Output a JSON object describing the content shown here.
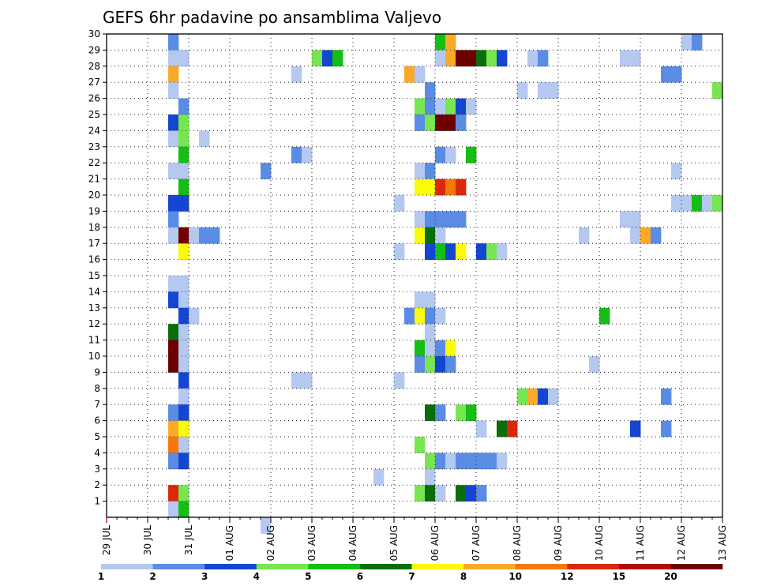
{
  "chart_data": {
    "type": "heatmap",
    "title": "GEFS 6hr padavine po ansamblima Valjevo",
    "xlabel": "",
    "ylabel": "",
    "x_tick_labels": [
      "29 JUL",
      "30 JUL",
      "31 JUL",
      "01 AUG",
      "02 AUG",
      "03 AUG",
      "04 AUG",
      "05 AUG",
      "06 AUG",
      "07 AUG",
      "08 AUG",
      "09 AUG",
      "10 AUG",
      "11 AUG",
      "12 AUG",
      "13 AUG"
    ],
    "x_unit": "6-hour step from 29 JUL 00 UTC",
    "xlim": [
      0,
      60
    ],
    "y_tick_labels": [
      "1",
      "2",
      "3",
      "4",
      "5",
      "6",
      "7",
      "8",
      "9",
      "10",
      "11",
      "12",
      "13",
      "14",
      "15",
      "16",
      "17",
      "18",
      "19",
      "20",
      "21",
      "22",
      "23",
      "24",
      "25",
      "26",
      "27",
      "28",
      "29",
      "30"
    ],
    "ylim": [
      0,
      30
    ],
    "grid": true,
    "colorbar": {
      "labels": [
        "1",
        "2",
        "3",
        "4",
        "5",
        "6",
        "7",
        "8",
        "10",
        "12",
        "15",
        "20"
      ],
      "colors": [
        "#b4c8f0",
        "#5a8ce6",
        "#1446d2",
        "#78e650",
        "#14be14",
        "#0a6e0a",
        "#fafa0a",
        "#faaa28",
        "#f5780a",
        "#dc280a",
        "#b40a0a",
        "#6e0000"
      ]
    },
    "cells_format": "[member, x_step, color_index]",
    "cells": [
      [
        30,
        6,
        1
      ],
      [
        30,
        32,
        4
      ],
      [
        30,
        33,
        7
      ],
      [
        30,
        56,
        0
      ],
      [
        30,
        57,
        1
      ],
      [
        29,
        6,
        0
      ],
      [
        29,
        7,
        0
      ],
      [
        29,
        20,
        3
      ],
      [
        29,
        21,
        2
      ],
      [
        29,
        22,
        4
      ],
      [
        29,
        32,
        0
      ],
      [
        29,
        33,
        7
      ],
      [
        29,
        34,
        11
      ],
      [
        29,
        35,
        11
      ],
      [
        29,
        36,
        5
      ],
      [
        29,
        37,
        3
      ],
      [
        29,
        38,
        2
      ],
      [
        29,
        41,
        0
      ],
      [
        29,
        42,
        1
      ],
      [
        29,
        50,
        0
      ],
      [
        29,
        51,
        0
      ],
      [
        28,
        6,
        7
      ],
      [
        28,
        18,
        0
      ],
      [
        28,
        29,
        7
      ],
      [
        28,
        30,
        0
      ],
      [
        28,
        54,
        1
      ],
      [
        28,
        55,
        1
      ],
      [
        27,
        6,
        0
      ],
      [
        27,
        31,
        1
      ],
      [
        27,
        40,
        0
      ],
      [
        27,
        42,
        0
      ],
      [
        27,
        43,
        0
      ],
      [
        27,
        59,
        3
      ],
      [
        26,
        7,
        1
      ],
      [
        26,
        30,
        3
      ],
      [
        26,
        31,
        1
      ],
      [
        26,
        32,
        0
      ],
      [
        26,
        33,
        3
      ],
      [
        26,
        34,
        2
      ],
      [
        26,
        35,
        0
      ],
      [
        25,
        6,
        2
      ],
      [
        25,
        7,
        3
      ],
      [
        25,
        30,
        1
      ],
      [
        25,
        31,
        3
      ],
      [
        25,
        32,
        11
      ],
      [
        25,
        33,
        11
      ],
      [
        25,
        34,
        1
      ],
      [
        24,
        6,
        0
      ],
      [
        24,
        7,
        3
      ],
      [
        24,
        9,
        0
      ],
      [
        23,
        7,
        4
      ],
      [
        23,
        18,
        1
      ],
      [
        23,
        19,
        0
      ],
      [
        23,
        32,
        1
      ],
      [
        23,
        33,
        0
      ],
      [
        23,
        35,
        4
      ],
      [
        22,
        6,
        0
      ],
      [
        22,
        7,
        0
      ],
      [
        22,
        15,
        1
      ],
      [
        22,
        30,
        0
      ],
      [
        22,
        31,
        1
      ],
      [
        22,
        55,
        0
      ],
      [
        21,
        7,
        4
      ],
      [
        21,
        30,
        6
      ],
      [
        21,
        31,
        6
      ],
      [
        21,
        32,
        9
      ],
      [
        21,
        33,
        8
      ],
      [
        21,
        34,
        9
      ],
      [
        20,
        6,
        2
      ],
      [
        20,
        7,
        2
      ],
      [
        20,
        28,
        0
      ],
      [
        20,
        55,
        0
      ],
      [
        20,
        56,
        0
      ],
      [
        20,
        57,
        4
      ],
      [
        20,
        58,
        0
      ],
      [
        20,
        59,
        3
      ],
      [
        19,
        6,
        1
      ],
      [
        19,
        30,
        0
      ],
      [
        19,
        31,
        1
      ],
      [
        19,
        32,
        1
      ],
      [
        19,
        33,
        1
      ],
      [
        19,
        34,
        1
      ],
      [
        19,
        50,
        0
      ],
      [
        19,
        51,
        0
      ],
      [
        18,
        6,
        0
      ],
      [
        18,
        7,
        11
      ],
      [
        18,
        8,
        0
      ],
      [
        18,
        9,
        1
      ],
      [
        18,
        10,
        1
      ],
      [
        18,
        30,
        6
      ],
      [
        18,
        31,
        5
      ],
      [
        18,
        32,
        0
      ],
      [
        18,
        46,
        0
      ],
      [
        18,
        51,
        0
      ],
      [
        18,
        52,
        7
      ],
      [
        18,
        53,
        1
      ],
      [
        17,
        7,
        6
      ],
      [
        17,
        28,
        0
      ],
      [
        17,
        31,
        2
      ],
      [
        17,
        32,
        4
      ],
      [
        17,
        33,
        2
      ],
      [
        17,
        34,
        6
      ],
      [
        17,
        36,
        2
      ],
      [
        17,
        37,
        3
      ],
      [
        17,
        38,
        0
      ],
      [
        15,
        6,
        0
      ],
      [
        15,
        7,
        0
      ],
      [
        14,
        6,
        2
      ],
      [
        14,
        7,
        0
      ],
      [
        14,
        30,
        0
      ],
      [
        14,
        31,
        0
      ],
      [
        13,
        7,
        2
      ],
      [
        13,
        8,
        0
      ],
      [
        13,
        29,
        1
      ],
      [
        13,
        30,
        6
      ],
      [
        13,
        31,
        1
      ],
      [
        13,
        32,
        0
      ],
      [
        13,
        48,
        4
      ],
      [
        12,
        6,
        5
      ],
      [
        12,
        7,
        0
      ],
      [
        12,
        31,
        0
      ],
      [
        11,
        6,
        11
      ],
      [
        11,
        7,
        0
      ],
      [
        11,
        30,
        4
      ],
      [
        11,
        31,
        0
      ],
      [
        11,
        32,
        1
      ],
      [
        11,
        33,
        6
      ],
      [
        10,
        6,
        11
      ],
      [
        10,
        7,
        0
      ],
      [
        10,
        30,
        1
      ],
      [
        10,
        31,
        3
      ],
      [
        10,
        32,
        2
      ],
      [
        10,
        33,
        1
      ],
      [
        10,
        47,
        0
      ],
      [
        9,
        7,
        2
      ],
      [
        9,
        18,
        0
      ],
      [
        9,
        19,
        0
      ],
      [
        9,
        28,
        0
      ],
      [
        8,
        7,
        0
      ],
      [
        8,
        40,
        3
      ],
      [
        8,
        41,
        7
      ],
      [
        8,
        42,
        2
      ],
      [
        8,
        43,
        0
      ],
      [
        8,
        54,
        1
      ],
      [
        7,
        6,
        1
      ],
      [
        7,
        7,
        2
      ],
      [
        7,
        31,
        5
      ],
      [
        7,
        32,
        1
      ],
      [
        7,
        34,
        3
      ],
      [
        7,
        35,
        4
      ],
      [
        6,
        6,
        7
      ],
      [
        6,
        7,
        6
      ],
      [
        6,
        36,
        0
      ],
      [
        6,
        38,
        5
      ],
      [
        6,
        39,
        9
      ],
      [
        6,
        51,
        2
      ],
      [
        6,
        54,
        1
      ],
      [
        5,
        6,
        8
      ],
      [
        5,
        7,
        0
      ],
      [
        5,
        30,
        3
      ],
      [
        4,
        6,
        1
      ],
      [
        4,
        7,
        2
      ],
      [
        4,
        31,
        3
      ],
      [
        4,
        32,
        1
      ],
      [
        4,
        33,
        0
      ],
      [
        4,
        34,
        1
      ],
      [
        4,
        35,
        1
      ],
      [
        4,
        36,
        1
      ],
      [
        4,
        37,
        1
      ],
      [
        4,
        38,
        0
      ],
      [
        3,
        26,
        0
      ],
      [
        3,
        31,
        0
      ],
      [
        2,
        6,
        9
      ],
      [
        2,
        7,
        3
      ],
      [
        2,
        30,
        3
      ],
      [
        2,
        31,
        5
      ],
      [
        2,
        32,
        0
      ],
      [
        2,
        34,
        5
      ],
      [
        2,
        35,
        2
      ],
      [
        2,
        36,
        1
      ],
      [
        1,
        6,
        0
      ],
      [
        1,
        7,
        4
      ],
      [
        0,
        15,
        0
      ]
    ]
  }
}
